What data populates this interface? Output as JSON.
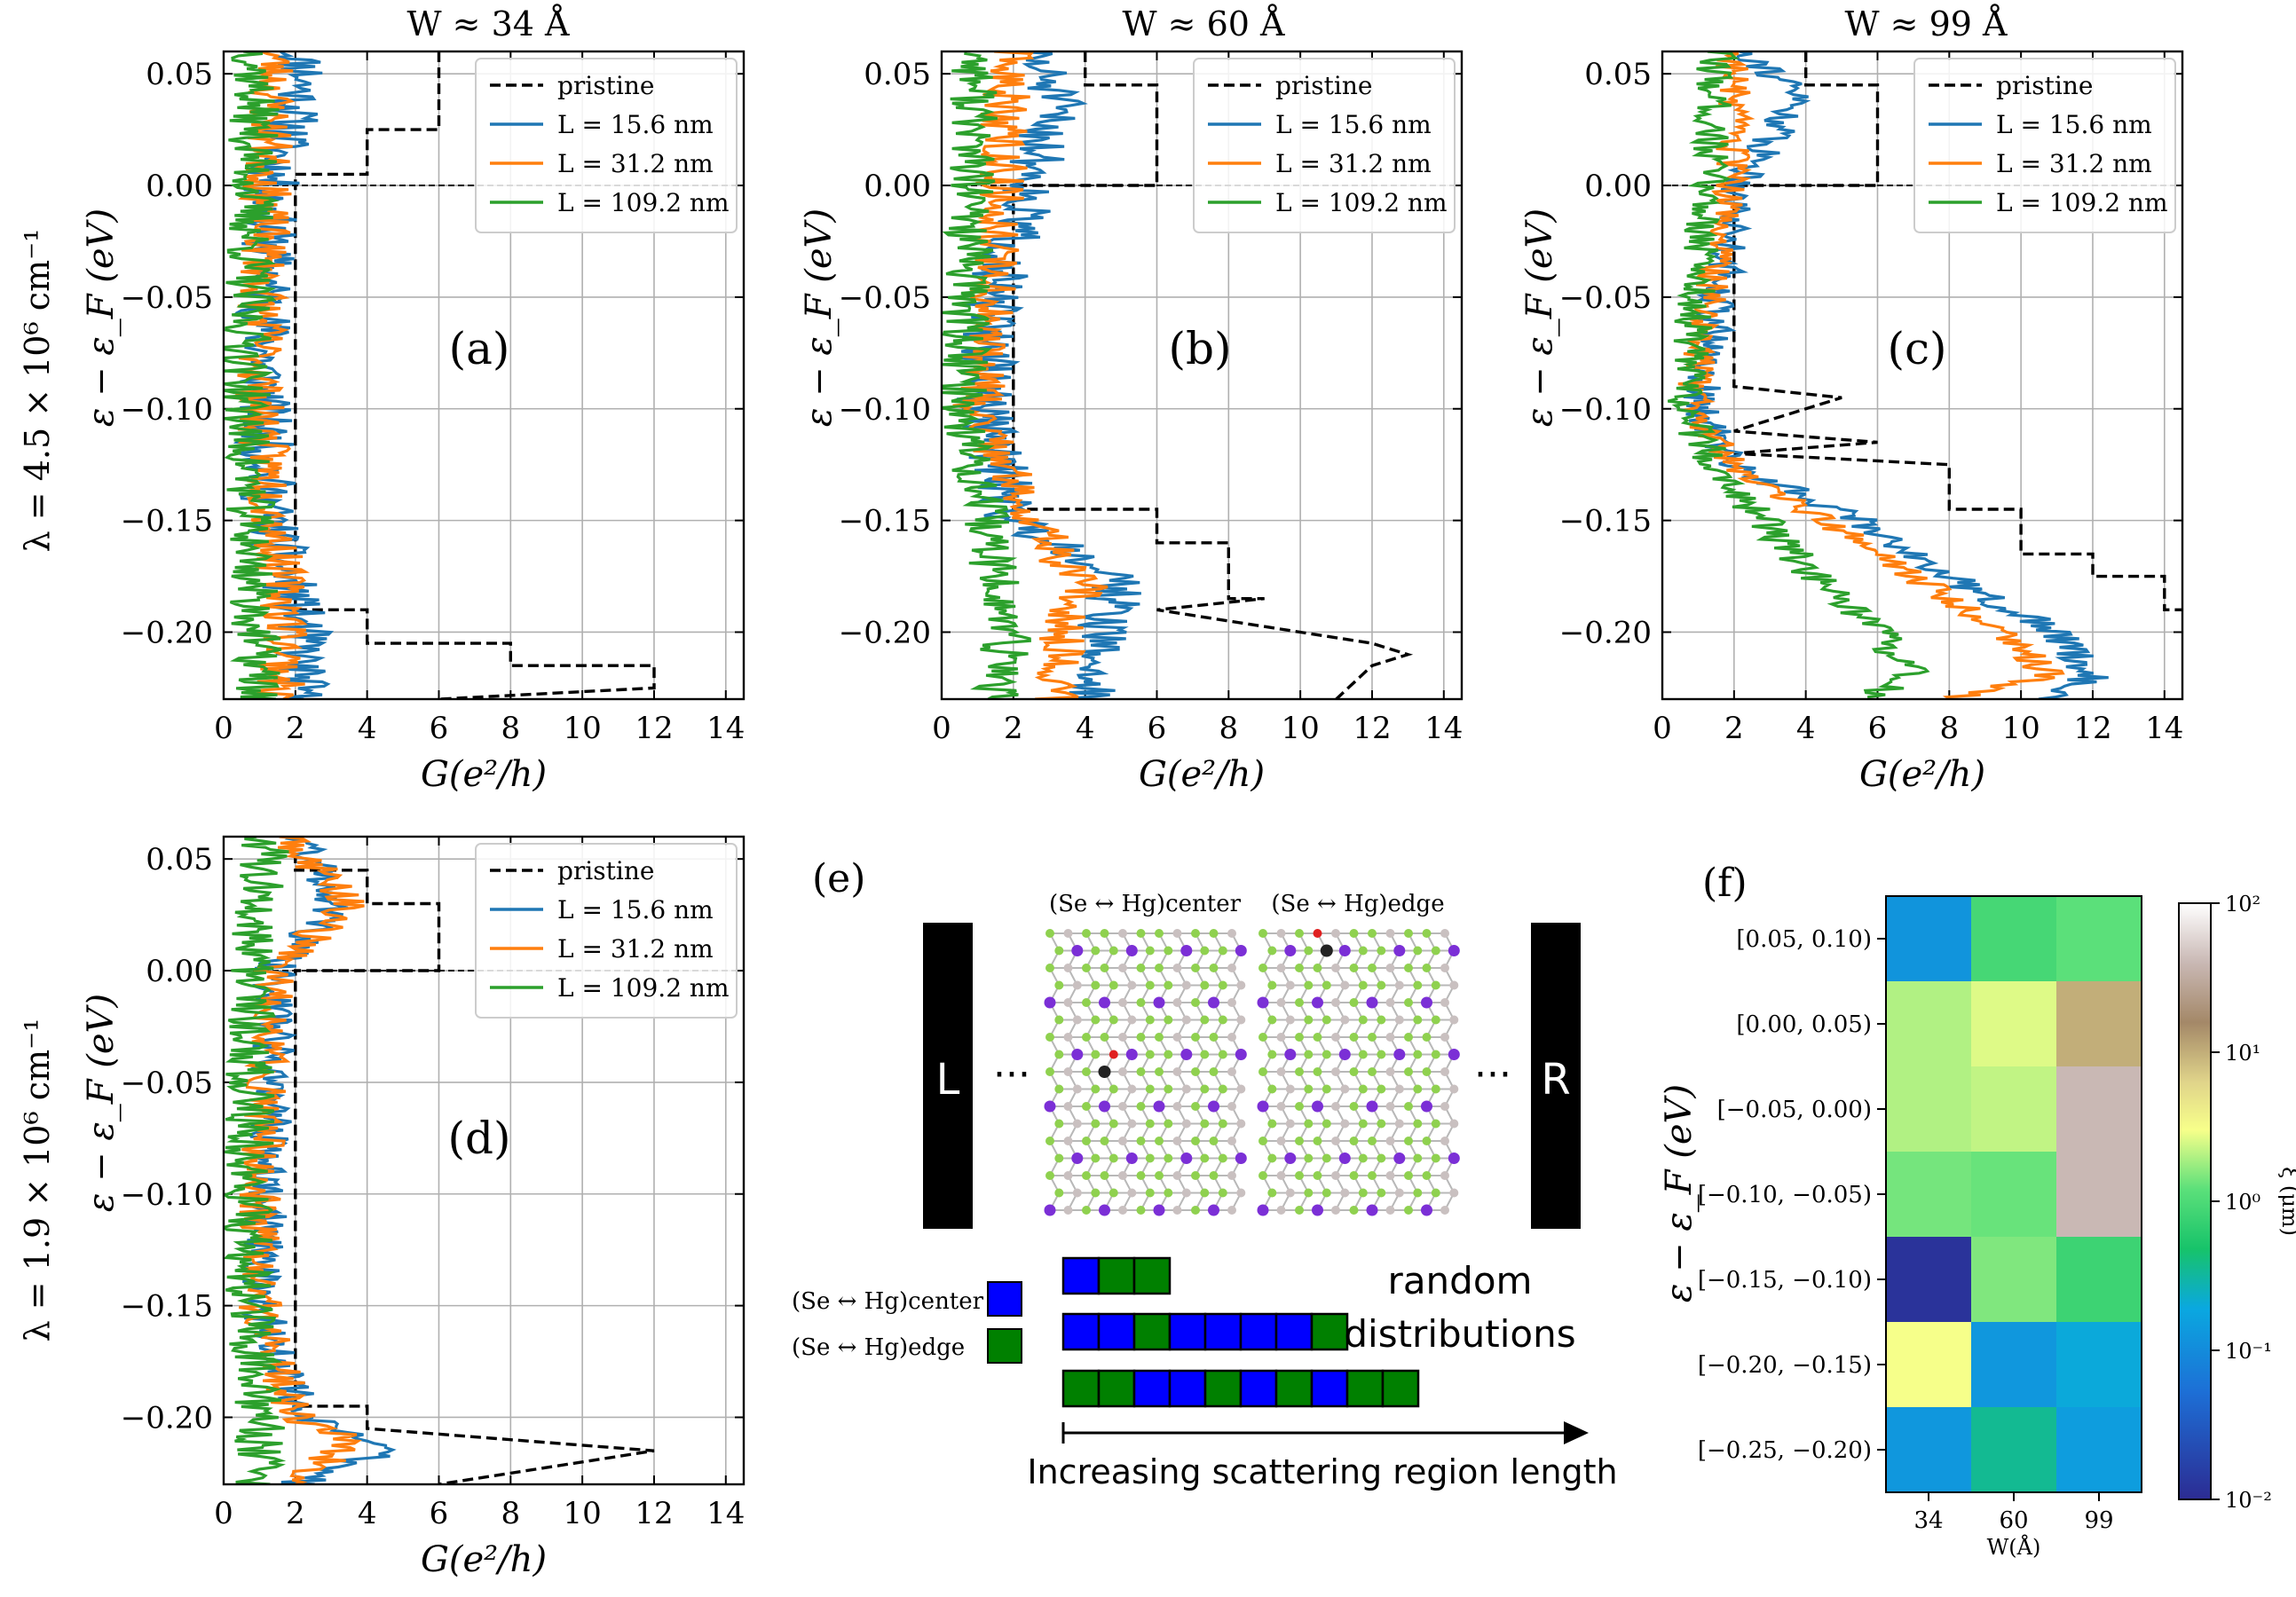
{
  "figure": {
    "column_titles": [
      "W ≈ 34 Å",
      "W ≈ 60 Å",
      "W ≈ 99 Å"
    ],
    "row_labels": [
      "λ = 4.5 × 10⁶ cm⁻¹",
      "λ = 1.9 × 10⁶ cm⁻¹"
    ],
    "x_axis_label": "G(e²/h)",
    "y_axis_label": "ε − ε_F (eV)"
  },
  "colors": {
    "pristine": "#000000",
    "L15": "#1f77b4",
    "L31": "#ff7f0e",
    "L109": "#2ca02c",
    "grid": "#b0b0b0",
    "center_square": "#0000ff",
    "edge_square": "#008000"
  },
  "chart_data": [
    {
      "type": "line",
      "panel": "(a)",
      "title": "W ≈ 34 Å",
      "xlabel": "G(e²/h)",
      "ylabel": "ε − ε_F (eV)",
      "xlim": [
        0,
        14.5
      ],
      "ylim": [
        -0.23,
        0.06
      ],
      "xticks": [
        "0",
        "2",
        "4",
        "6",
        "8",
        "10",
        "12",
        "14"
      ],
      "yticks": [
        "0.05",
        "0.00",
        "−0.05",
        "−0.10",
        "−0.15",
        "−0.20"
      ],
      "legend": [
        "pristine",
        "L =  15.6 nm",
        "L =  31.2 nm",
        "L =  109.2 nm"
      ],
      "series": [
        {
          "name": "pristine",
          "style": "dashed",
          "points": [
            [
              6,
              0.06
            ],
            [
              6,
              0.025
            ],
            [
              4,
              0.025
            ],
            [
              4,
              0.005
            ],
            [
              2,
              0.005
            ],
            [
              2,
              -0.19
            ],
            [
              4,
              -0.19
            ],
            [
              4,
              -0.205
            ],
            [
              8,
              -0.205
            ],
            [
              8,
              -0.215
            ],
            [
              12,
              -0.215
            ],
            [
              12,
              -0.225
            ],
            [
              6,
              -0.23
            ]
          ]
        },
        {
          "name": "L = 15.6 nm",
          "noise": {
            "seed": 11,
            "base": [
              [
                0.06,
                2.0
              ],
              [
                0.05,
                2.3
              ],
              [
                0.0,
                1.3
              ],
              [
                -0.05,
                1.2
              ],
              [
                -0.1,
                1.1
              ],
              [
                -0.15,
                1.3
              ],
              [
                -0.2,
                2.2
              ],
              [
                -0.23,
                2.1
              ]
            ],
            "amp": 0.8
          }
        },
        {
          "name": "L = 31.2 nm",
          "noise": {
            "seed": 23,
            "base": [
              [
                0.06,
                1.4
              ],
              [
                0.0,
                1.2
              ],
              [
                -0.1,
                1.0
              ],
              [
                -0.2,
                1.8
              ],
              [
                -0.23,
                1.5
              ]
            ],
            "amp": 0.7
          }
        },
        {
          "name": "L = 109.2 nm",
          "noise": {
            "seed": 37,
            "base": [
              [
                0.06,
                0.9
              ],
              [
                0.0,
                0.8
              ],
              [
                -0.1,
                0.6
              ],
              [
                -0.2,
                0.9
              ],
              [
                -0.23,
                1.0
              ]
            ],
            "amp": 0.7
          }
        }
      ]
    },
    {
      "type": "line",
      "panel": "(b)",
      "title": "W ≈ 60 Å",
      "xlabel": "G(e²/h)",
      "ylabel": "ε − ε_F (eV)",
      "xlim": [
        0,
        14.5
      ],
      "ylim": [
        -0.23,
        0.06
      ],
      "xticks": [
        "0",
        "2",
        "4",
        "6",
        "8",
        "10",
        "12",
        "14"
      ],
      "yticks": [
        "0.05",
        "0.00",
        "−0.05",
        "−0.10",
        "−0.15",
        "−0.20"
      ],
      "legend": [
        "pristine",
        "L =  15.6 nm",
        "L =  31.2 nm",
        "L =  109.2 nm"
      ],
      "series": [
        {
          "name": "pristine",
          "style": "dashed",
          "points": [
            [
              4,
              0.06
            ],
            [
              4,
              0.045
            ],
            [
              6,
              0.045
            ],
            [
              6,
              0.0
            ],
            [
              2,
              0.0
            ],
            [
              2,
              -0.145
            ],
            [
              6,
              -0.145
            ],
            [
              6,
              -0.16
            ],
            [
              8,
              -0.16
            ],
            [
              8,
              -0.185
            ],
            [
              9,
              -0.185
            ],
            [
              6,
              -0.19
            ],
            [
              10,
              -0.2
            ],
            [
              12,
              -0.205
            ],
            [
              13,
              -0.21
            ],
            [
              12,
              -0.215
            ],
            [
              11,
              -0.23
            ]
          ]
        },
        {
          "name": "L = 15.6 nm",
          "noise": {
            "seed": 51,
            "base": [
              [
                0.06,
                2.4
              ],
              [
                0.04,
                3.2
              ],
              [
                0.0,
                2.5
              ],
              [
                -0.05,
                1.4
              ],
              [
                -0.1,
                1.2
              ],
              [
                -0.15,
                2.0
              ],
              [
                -0.175,
                5.0
              ],
              [
                -0.2,
                4.5
              ],
              [
                -0.23,
                4.0
              ]
            ],
            "amp": 0.8
          }
        },
        {
          "name": "L = 31.2 nm",
          "noise": {
            "seed": 63,
            "base": [
              [
                0.06,
                1.8
              ],
              [
                0.0,
                1.7
              ],
              [
                -0.1,
                1.0
              ],
              [
                -0.15,
                2.5
              ],
              [
                -0.18,
                4.0
              ],
              [
                -0.2,
                3.4
              ],
              [
                -0.23,
                3.2
              ]
            ],
            "amp": 0.7
          }
        },
        {
          "name": "L = 109.2 nm",
          "noise": {
            "seed": 77,
            "base": [
              [
                0.06,
                1.0
              ],
              [
                0.0,
                0.8
              ],
              [
                -0.1,
                0.6
              ],
              [
                -0.15,
                1.2
              ],
              [
                -0.2,
                1.8
              ],
              [
                -0.23,
                1.6
              ]
            ],
            "amp": 0.7
          }
        }
      ]
    },
    {
      "type": "line",
      "panel": "(c)",
      "title": "W ≈ 99 Å",
      "xlabel": "G(e²/h)",
      "ylabel": "ε − ε_F (eV)",
      "xlim": [
        0,
        14.5
      ],
      "ylim": [
        -0.23,
        0.06
      ],
      "xticks": [
        "0",
        "2",
        "4",
        "6",
        "8",
        "10",
        "12",
        "14"
      ],
      "yticks": [
        "0.05",
        "0.00",
        "−0.05",
        "−0.10",
        "−0.15",
        "−0.20"
      ],
      "legend": [
        "pristine",
        "L =  15.6 nm",
        "L =  31.2 nm",
        "L =  109.2 nm"
      ],
      "series": [
        {
          "name": "pristine",
          "style": "dashed",
          "points": [
            [
              4,
              0.06
            ],
            [
              4,
              0.045
            ],
            [
              6,
              0.045
            ],
            [
              6,
              0.0
            ],
            [
              2,
              0.0
            ],
            [
              2,
              -0.09
            ],
            [
              5,
              -0.095
            ],
            [
              2,
              -0.11
            ],
            [
              6,
              -0.115
            ],
            [
              2,
              -0.12
            ],
            [
              8,
              -0.125
            ],
            [
              8,
              -0.145
            ],
            [
              10,
              -0.145
            ],
            [
              10,
              -0.165
            ],
            [
              12,
              -0.165
            ],
            [
              12,
              -0.175
            ],
            [
              14,
              -0.175
            ],
            [
              14,
              -0.19
            ],
            [
              14.5,
              -0.19
            ]
          ]
        },
        {
          "name": "L = 15.6 nm",
          "noise": {
            "seed": 91,
            "base": [
              [
                0.06,
                2.4
              ],
              [
                0.04,
                3.8
              ],
              [
                0.0,
                2.2
              ],
              [
                -0.05,
                1.6
              ],
              [
                -0.1,
                1.0
              ],
              [
                -0.125,
                2.0
              ],
              [
                -0.15,
                5.5
              ],
              [
                -0.18,
                8.5
              ],
              [
                -0.2,
                11.0
              ],
              [
                -0.22,
                12.0
              ],
              [
                -0.23,
                10.5
              ]
            ],
            "amp": 0.55
          }
        },
        {
          "name": "L = 31.2 nm",
          "noise": {
            "seed": 103,
            "base": [
              [
                0.06,
                2.0
              ],
              [
                0.0,
                1.9
              ],
              [
                -0.1,
                0.8
              ],
              [
                -0.125,
                2.0
              ],
              [
                -0.15,
                4.5
              ],
              [
                -0.18,
                7.5
              ],
              [
                -0.2,
                9.6
              ],
              [
                -0.22,
                10.8
              ],
              [
                -0.23,
                8.0
              ]
            ],
            "amp": 0.5
          }
        },
        {
          "name": "L = 109.2 nm",
          "noise": {
            "seed": 117,
            "base": [
              [
                0.06,
                1.5
              ],
              [
                0.0,
                1.3
              ],
              [
                -0.1,
                0.6
              ],
              [
                -0.125,
                1.5
              ],
              [
                -0.15,
                2.8
              ],
              [
                -0.18,
                4.5
              ],
              [
                -0.2,
                6.0
              ],
              [
                -0.22,
                7.0
              ],
              [
                -0.23,
                5.5
              ]
            ],
            "amp": 0.55
          }
        }
      ]
    },
    {
      "type": "line",
      "panel": "(d)",
      "xlabel": "G(e²/h)",
      "ylabel": "ε − ε_F (eV)",
      "xlim": [
        0,
        14.5
      ],
      "ylim": [
        -0.23,
        0.06
      ],
      "xticks": [
        "0",
        "2",
        "4",
        "6",
        "8",
        "10",
        "12",
        "14"
      ],
      "yticks": [
        "0.05",
        "0.00",
        "−0.05",
        "−0.10",
        "−0.15",
        "−0.20"
      ],
      "legend": [
        "pristine",
        "L =  15.6 nm",
        "L =  31.2 nm",
        "L =  109.2 nm"
      ],
      "series": [
        {
          "name": "pristine",
          "style": "dashed",
          "points": [
            [
              2,
              0.06
            ],
            [
              2,
              0.045
            ],
            [
              4,
              0.045
            ],
            [
              4,
              0.03
            ],
            [
              6,
              0.03
            ],
            [
              6,
              0.0
            ],
            [
              2,
              0.0
            ],
            [
              2,
              -0.195
            ],
            [
              4,
              -0.195
            ],
            [
              4,
              -0.205
            ],
            [
              8,
              -0.21
            ],
            [
              12,
              -0.215
            ],
            [
              10,
              -0.22
            ],
            [
              6,
              -0.23
            ]
          ]
        },
        {
          "name": "L = 15.6 nm",
          "noise": {
            "seed": 131,
            "base": [
              [
                0.06,
                2.2
              ],
              [
                0.03,
                3.2
              ],
              [
                0.0,
                1.4
              ],
              [
                -0.05,
                1.4
              ],
              [
                -0.1,
                1.2
              ],
              [
                -0.15,
                1.0
              ],
              [
                -0.2,
                2.2
              ],
              [
                -0.215,
                4.5
              ],
              [
                -0.23,
                2.0
              ]
            ],
            "amp": 0.6
          }
        },
        {
          "name": "L = 31.2 nm",
          "noise": {
            "seed": 149,
            "base": [
              [
                0.06,
                1.8
              ],
              [
                0.03,
                3.5
              ],
              [
                0.0,
                1.4
              ],
              [
                -0.05,
                1.2
              ],
              [
                -0.1,
                1.0
              ],
              [
                -0.15,
                1.0
              ],
              [
                -0.2,
                2.0
              ],
              [
                -0.21,
                3.6
              ],
              [
                -0.23,
                2.0
              ]
            ],
            "amp": 0.6
          }
        },
        {
          "name": "L = 109.2 nm",
          "noise": {
            "seed": 163,
            "base": [
              [
                0.06,
                1.2
              ],
              [
                0.0,
                0.8
              ],
              [
                -0.1,
                0.7
              ],
              [
                -0.15,
                0.7
              ],
              [
                -0.2,
                1.0
              ],
              [
                -0.23,
                1.0
              ]
            ],
            "amp": 0.7
          }
        }
      ]
    },
    {
      "type": "heatmap",
      "panel": "(f)",
      "xlabel": "W(Å)",
      "ylabel": "ε − ε_F (eV)",
      "colorbar_label": "ξ (μm)",
      "colorbar_scale": "log",
      "colorbar_ticks": [
        "10²",
        "10¹",
        "10⁰",
        "10⁻¹",
        "10⁻²"
      ],
      "x_categories": [
        "34",
        "60",
        "99"
      ],
      "y_categories": [
        "[0.05, 0.10)",
        "[0.00, 0.05)",
        "[−0.05, 0.00)",
        "[−0.10, −0.05)",
        "[−0.15, −0.10)",
        "[−0.20, −0.15)",
        "[−0.25, −0.20)"
      ],
      "values": [
        [
          0.12,
          0.9,
          1.2
        ],
        [
          2.0,
          2.6,
          10.0
        ],
        [
          2.0,
          2.2,
          40.0
        ],
        [
          1.4,
          1.3,
          40.0
        ],
        [
          0.012,
          1.5,
          0.8
        ],
        [
          3.0,
          0.13,
          0.2
        ],
        [
          0.13,
          0.35,
          0.15
        ]
      ]
    }
  ],
  "schematic": {
    "panel_label": "(e)",
    "lead_left": "L",
    "lead_right": "R",
    "dots": "···",
    "lattice_label_center": "(Se ↔ Hg)center",
    "lattice_label_edge": "(Se ↔ Hg)edge",
    "legend_center": "(Se ↔ Hg)center",
    "legend_edge": "(Se ↔ Hg)edge",
    "random_label_1": "random",
    "random_label_2": "distributions",
    "arrow_label": "Increasing scattering region length",
    "sequences": [
      [
        "center",
        "edge",
        "edge"
      ],
      [
        "center",
        "center",
        "edge",
        "center",
        "center",
        "center",
        "center",
        "edge"
      ],
      [
        "edge",
        "edge",
        "center",
        "center",
        "edge",
        "center",
        "edge",
        "center",
        "edge",
        "edge"
      ]
    ]
  }
}
